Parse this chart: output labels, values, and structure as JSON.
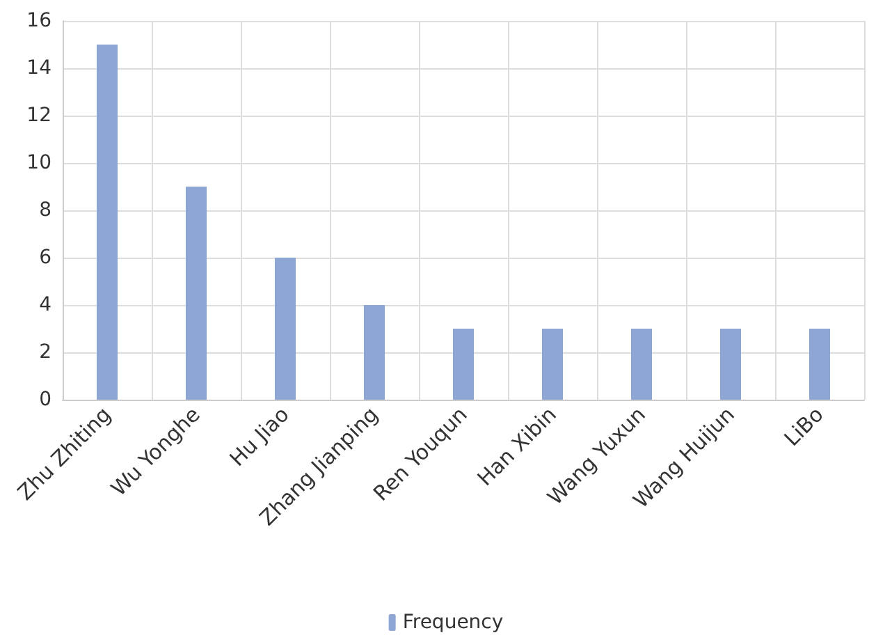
{
  "chart_data": {
    "type": "bar",
    "categories": [
      "Zhu Zhiting",
      "Wu Yonghe",
      "Hu Jiao",
      "Zhang Jianping",
      "Ren Youqun",
      "Han Xibin",
      "Wang Yuxun",
      "Wang Huijun",
      "LiBo"
    ],
    "series": [
      {
        "name": "Frequency",
        "color": "#8ea6d4",
        "values": [
          15,
          9,
          6,
          4,
          3,
          3,
          3,
          3,
          3
        ]
      }
    ],
    "ylim": [
      0,
      16
    ],
    "yticks": [
      0,
      2,
      4,
      6,
      8,
      10,
      12,
      14,
      16
    ],
    "grid": true,
    "legend": "bottom"
  }
}
